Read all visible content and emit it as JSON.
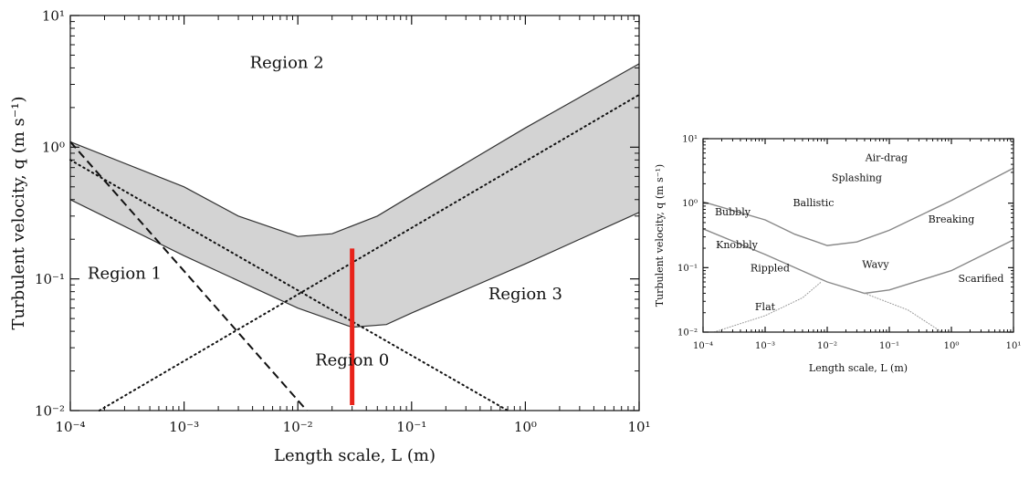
{
  "chart_data": [
    {
      "type": "line",
      "xlabel": "Length scale, L (m)",
      "ylabel": "Turbulent velocity, q (m s⁻¹)",
      "xscale": "log",
      "yscale": "log",
      "xlim": [
        0.0001,
        10
      ],
      "ylim": [
        0.01,
        10
      ],
      "xticks": [
        {
          "value": 0.0001,
          "label": "10⁻⁴"
        },
        {
          "value": 0.001,
          "label": "10⁻³"
        },
        {
          "value": 0.01,
          "label": "10⁻²"
        },
        {
          "value": 0.1,
          "label": "10⁻¹"
        },
        {
          "value": 1,
          "label": "10⁰"
        },
        {
          "value": 10,
          "label": "10¹"
        }
      ],
      "yticks": [
        {
          "value": 0.01,
          "label": "10⁻²"
        },
        {
          "value": 0.1,
          "label": "10⁻¹"
        },
        {
          "value": 1,
          "label": "10⁰"
        },
        {
          "value": 10,
          "label": "10¹"
        }
      ],
      "band": {
        "fill": "#d3d3d3",
        "upper": {
          "x": [
            0.0001,
            0.001,
            0.003,
            0.01,
            0.02,
            0.05,
            0.1,
            1,
            10
          ],
          "y": [
            1.1,
            0.5,
            0.3,
            0.21,
            0.22,
            0.3,
            0.43,
            1.4,
            4.3
          ]
        },
        "lower": {
          "x": [
            0.0001,
            0.001,
            0.01,
            0.03,
            0.06,
            0.1,
            1,
            10
          ],
          "y": [
            0.4,
            0.15,
            0.06,
            0.043,
            0.045,
            0.055,
            0.13,
            0.32
          ]
        }
      },
      "series": [
        {
          "style": "dashed",
          "x": [
            0.0001,
            0.012
          ],
          "y": [
            1.1,
            0.01
          ]
        },
        {
          "style": "dotted",
          "x": [
            0.0001,
            0.7
          ],
          "y": [
            0.8,
            0.01
          ]
        },
        {
          "style": "dotted",
          "x": [
            0.00018,
            10
          ],
          "y": [
            0.01,
            2.5
          ]
        }
      ],
      "marker": {
        "color": "#e8231a",
        "x": 0.03,
        "y_from": 0.011,
        "y_to": 0.17
      },
      "annotations": [
        {
          "text": "Region 2",
          "x": 0.008,
          "y": 4.0
        },
        {
          "text": "Region 1",
          "x": 0.0003,
          "y": 0.1
        },
        {
          "text": "Region 3",
          "x": 1.0,
          "y": 0.07
        },
        {
          "text": "Region 0",
          "x": 0.03,
          "y": 0.022
        }
      ]
    },
    {
      "type": "line",
      "xlabel": "Length scale, L (m)",
      "ylabel": "Turbulent velocity, q (m s⁻¹)",
      "xscale": "log",
      "yscale": "log",
      "xlim": [
        0.0001,
        10
      ],
      "ylim": [
        0.01,
        10
      ],
      "xticks": [
        {
          "value": 0.0001,
          "label": "10⁻⁴"
        },
        {
          "value": 0.001,
          "label": "10⁻³"
        },
        {
          "value": 0.01,
          "label": "10⁻²"
        },
        {
          "value": 0.1,
          "label": "10⁻¹"
        },
        {
          "value": 1,
          "label": "10⁰"
        },
        {
          "value": 10,
          "label": "10¹"
        }
      ],
      "yticks": [
        {
          "value": 0.01,
          "label": "10⁻²"
        },
        {
          "value": 0.1,
          "label": "10⁻¹"
        },
        {
          "value": 1,
          "label": "10⁰"
        },
        {
          "value": 10,
          "label": "10¹"
        }
      ],
      "series": [
        {
          "style": "solid",
          "x": [
            0.0001,
            0.001,
            0.003,
            0.01,
            0.03,
            0.1,
            1,
            10
          ],
          "y": [
            1.05,
            0.55,
            0.33,
            0.22,
            0.25,
            0.38,
            1.1,
            3.5
          ]
        },
        {
          "style": "solid",
          "x": [
            0.0001,
            0.001,
            0.01,
            0.04,
            0.1,
            1,
            10
          ],
          "y": [
            0.4,
            0.16,
            0.06,
            0.04,
            0.045,
            0.09,
            0.27
          ]
        },
        {
          "style": "dotted",
          "x": [
            0.00015,
            0.001,
            0.004,
            0.008
          ],
          "y": [
            0.01,
            0.018,
            0.034,
            0.06
          ]
        },
        {
          "style": "dotted",
          "x": [
            0.04,
            0.2,
            0.7
          ],
          "y": [
            0.04,
            0.022,
            0.01
          ]
        }
      ],
      "annotations": [
        {
          "text": "Air-drag",
          "x": 0.09,
          "y": 4.5
        },
        {
          "text": "Splashing",
          "x": 0.03,
          "y": 2.2
        },
        {
          "text": "Ballistic",
          "x": 0.006,
          "y": 0.9
        },
        {
          "text": "Bubbly",
          "x": 0.0003,
          "y": 0.65
        },
        {
          "text": "Breaking",
          "x": 1.0,
          "y": 0.5
        },
        {
          "text": "Knobbly",
          "x": 0.00035,
          "y": 0.2
        },
        {
          "text": "Rippled",
          "x": 0.0012,
          "y": 0.088
        },
        {
          "text": "Wavy",
          "x": 0.06,
          "y": 0.1
        },
        {
          "text": "Scarified",
          "x": 3.0,
          "y": 0.06
        },
        {
          "text": "Flat",
          "x": 0.001,
          "y": 0.022
        }
      ]
    }
  ]
}
